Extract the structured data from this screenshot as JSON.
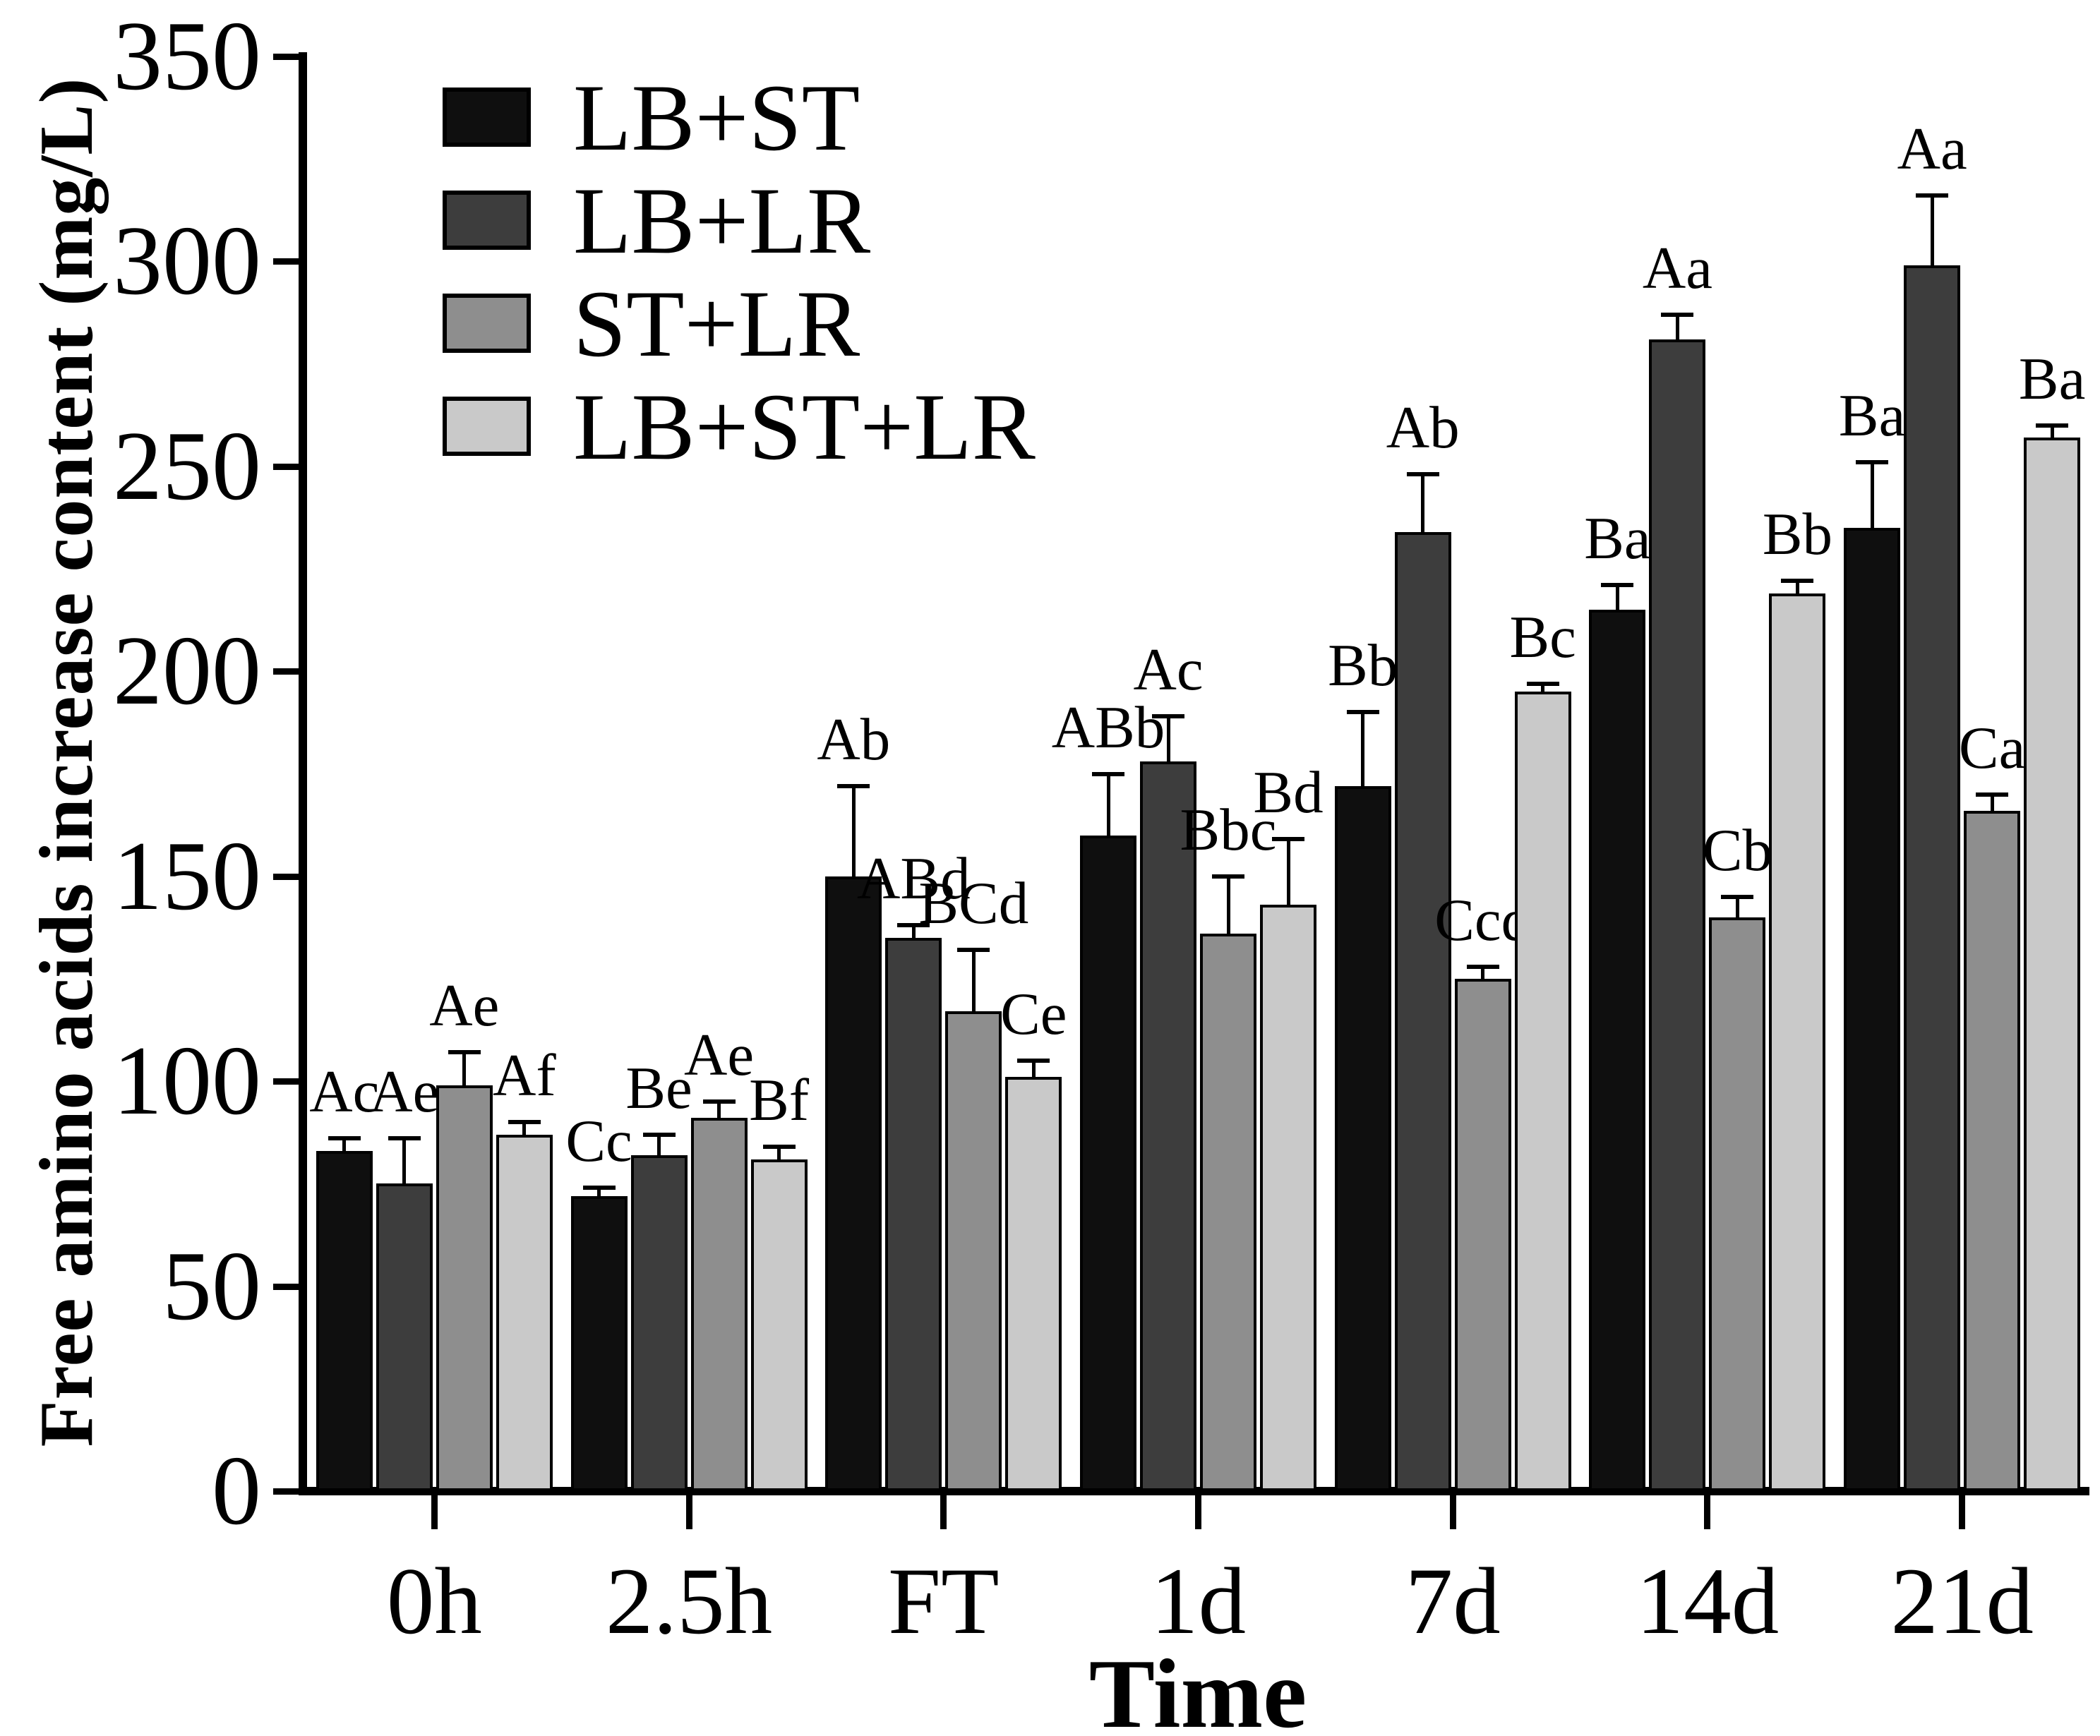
{
  "figure": {
    "y_axis_title": "Free amino acids increase content (mg/L)",
    "x_axis_title": "Time"
  },
  "legend": {
    "items": [
      {
        "label": "LB+ST",
        "color": "#0f0f0f"
      },
      {
        "label": "LB+LR",
        "color": "#3d3d3d"
      },
      {
        "label": "ST+LR",
        "color": "#8e8e8e"
      },
      {
        "label": "LB+ST+LR",
        "color": "#c9c9c9"
      }
    ]
  },
  "chart_data": {
    "type": "bar",
    "title": "",
    "xlabel": "Time",
    "ylabel": "Free amino acids increase content (mg/L)",
    "ylim": [
      0,
      350
    ],
    "y_ticks": [
      0,
      50,
      100,
      150,
      200,
      250,
      300,
      350
    ],
    "grid": false,
    "legend_position": "top-left",
    "error_bars": "plus-one-sd",
    "categories": [
      "0h",
      "2.5h",
      "FT",
      "1d",
      "7d",
      "14d",
      "21d"
    ],
    "series": [
      {
        "name": "LB+ST",
        "color": "#0f0f0f",
        "values": [
          83,
          72,
          150,
          160,
          172,
          215,
          235
        ],
        "errors": [
          3,
          2,
          22,
          15,
          18,
          6,
          16
        ],
        "sig_labels": [
          "Ac",
          "Cc",
          "Ab",
          "ABb",
          "Bb",
          "Ba",
          "Ba"
        ]
      },
      {
        "name": "LB+LR",
        "color": "#3d3d3d",
        "values": [
          75,
          82,
          135,
          178,
          234,
          281,
          299
        ],
        "errors": [
          11,
          5,
          3,
          11,
          14,
          6,
          17
        ],
        "sig_labels": [
          "Ae",
          "Be",
          "ABd",
          "Ac",
          "Ab",
          "Aa",
          "Aa"
        ]
      },
      {
        "name": "ST+LR",
        "color": "#8e8e8e",
        "values": [
          99,
          91,
          117,
          136,
          125,
          140,
          166
        ],
        "errors": [
          8,
          4,
          15,
          14,
          3,
          5,
          4
        ],
        "sig_labels": [
          "Ae",
          "Ae",
          "BCd",
          "Bbc",
          "Ccd",
          "Cb",
          "Ca"
        ]
      },
      {
        "name": "LB+ST+LR",
        "color": "#c9c9c9",
        "values": [
          87,
          81,
          101,
          143,
          195,
          219,
          257
        ],
        "errors": [
          3,
          3,
          4,
          16,
          2,
          3,
          3
        ],
        "sig_labels": [
          "Af",
          "Bf",
          "Ce",
          "Bd",
          "Bc",
          "Bb",
          "Ba"
        ]
      }
    ]
  }
}
